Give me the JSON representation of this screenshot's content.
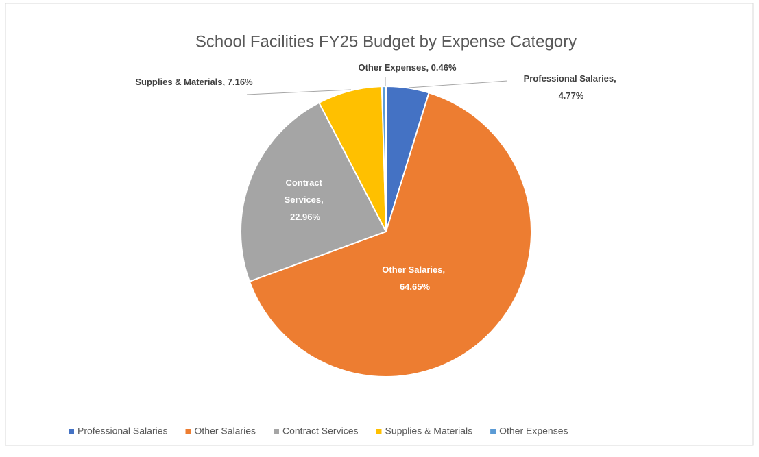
{
  "chart_data": {
    "type": "pie",
    "title": "School Facilities FY25 Budget by Expense Category",
    "categories": [
      "Professional Salaries",
      "Other Salaries",
      "Contract Services",
      "Supplies & Materials",
      "Other Expenses"
    ],
    "values": [
      4.77,
      64.65,
      22.96,
      7.16,
      0.46
    ],
    "value_labels": [
      "Professional Salaries, 4.77%",
      "Other Salaries, 64.65%",
      "Contract Services, 22.96%",
      "Supplies & Materials, 7.16%",
      "Other Expenses, 0.46%"
    ],
    "colors": [
      "#4472c4",
      "#ed7d31",
      "#a5a5a5",
      "#ffc000",
      "#5b9bd5"
    ],
    "legend": "bottom"
  }
}
